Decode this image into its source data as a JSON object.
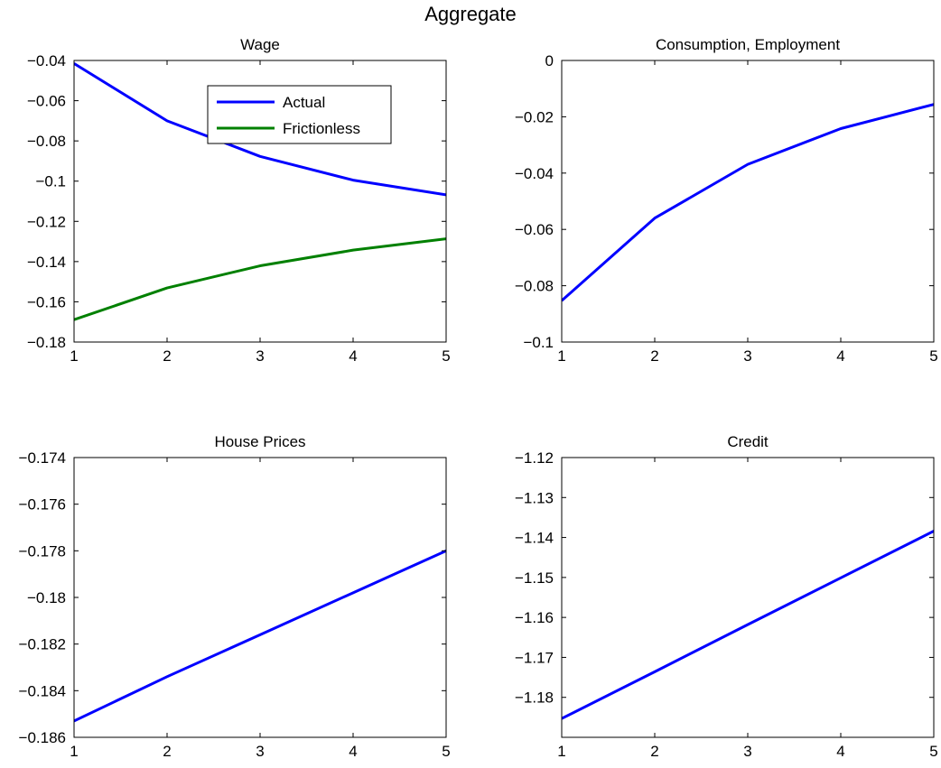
{
  "figure_title": "Aggregate",
  "colors": {
    "actual": "#0000ff",
    "frictionless": "#008000",
    "axes": "#000000"
  },
  "chart_data": [
    {
      "type": "line",
      "title": "Wage",
      "xlabel": "",
      "ylabel": "",
      "x": [
        1,
        2,
        3,
        4,
        5
      ],
      "xlim": [
        1,
        5
      ],
      "ylim": [
        -0.18,
        -0.04
      ],
      "xticks": [
        1,
        2,
        3,
        4,
        5
      ],
      "xtick_labels": [
        "1",
        "2",
        "3",
        "4",
        "5"
      ],
      "yticks": [
        -0.18,
        -0.16,
        -0.14,
        -0.12,
        -0.1,
        -0.08,
        -0.06,
        -0.04
      ],
      "ytick_labels": [
        "−0.18",
        "−0.16",
        "−0.14",
        "−0.12",
        "−0.1",
        "−0.08",
        "−0.06",
        "−0.04"
      ],
      "grid": false,
      "legend": "upper-center",
      "series": [
        {
          "name": "Actual",
          "color": "#0000ff",
          "values": [
            -0.0415,
            -0.07,
            -0.0877,
            -0.0995,
            -0.1068
          ]
        },
        {
          "name": "Frictionless",
          "color": "#008000",
          "values": [
            -0.1689,
            -0.1531,
            -0.1421,
            -0.1343,
            -0.1287
          ]
        }
      ]
    },
    {
      "type": "line",
      "title": "Consumption, Employment",
      "xlabel": "",
      "ylabel": "",
      "x": [
        1,
        2,
        3,
        4,
        5
      ],
      "xlim": [
        1,
        5
      ],
      "ylim": [
        -0.1,
        0
      ],
      "xticks": [
        1,
        2,
        3,
        4,
        5
      ],
      "xtick_labels": [
        "1",
        "2",
        "3",
        "4",
        "5"
      ],
      "yticks": [
        -0.1,
        -0.08,
        -0.06,
        -0.04,
        -0.02,
        0
      ],
      "ytick_labels": [
        "−0.1",
        "−0.08",
        "−0.06",
        "−0.04",
        "−0.02",
        "0"
      ],
      "grid": false,
      "series": [
        {
          "color": "#0000ff",
          "values": [
            -0.0853,
            -0.056,
            -0.0369,
            -0.0242,
            -0.0156
          ]
        }
      ]
    },
    {
      "type": "line",
      "title": "House Prices",
      "xlabel": "",
      "ylabel": "",
      "x": [
        1,
        2,
        3,
        4,
        5
      ],
      "xlim": [
        1,
        5
      ],
      "ylim": [
        -0.186,
        -0.174
      ],
      "xticks": [
        1,
        2,
        3,
        4,
        5
      ],
      "xtick_labels": [
        "1",
        "2",
        "3",
        "4",
        "5"
      ],
      "yticks": [
        -0.186,
        -0.184,
        -0.182,
        -0.18,
        -0.178,
        -0.176,
        -0.174
      ],
      "ytick_labels": [
        "−0.186",
        "−0.184",
        "−0.182",
        "−0.18",
        "−0.178",
        "−0.176",
        "−0.174"
      ],
      "grid": false,
      "series": [
        {
          "color": "#0000ff",
          "values": [
            -0.1853,
            -0.1834,
            -0.1816,
            -0.1798,
            -0.178
          ]
        }
      ]
    },
    {
      "type": "line",
      "title": "Credit",
      "xlabel": "",
      "ylabel": "",
      "x": [
        1,
        2,
        3,
        4,
        5
      ],
      "xlim": [
        1,
        5
      ],
      "ylim": [
        -1.19,
        -1.12
      ],
      "xticks": [
        1,
        2,
        3,
        4,
        5
      ],
      "xtick_labels": [
        "1",
        "2",
        "3",
        "4",
        "5"
      ],
      "yticks": [
        -1.18,
        -1.17,
        -1.16,
        -1.15,
        -1.14,
        -1.13,
        -1.12
      ],
      "ytick_labels": [
        "−1.18",
        "−1.17",
        "−1.16",
        "−1.15",
        "−1.14",
        "−1.13",
        "−1.12"
      ],
      "grid": false,
      "series": [
        {
          "color": "#0000ff",
          "values": [
            -1.1853,
            -1.1736,
            -1.1618,
            -1.1501,
            -1.1384
          ]
        }
      ]
    }
  ]
}
